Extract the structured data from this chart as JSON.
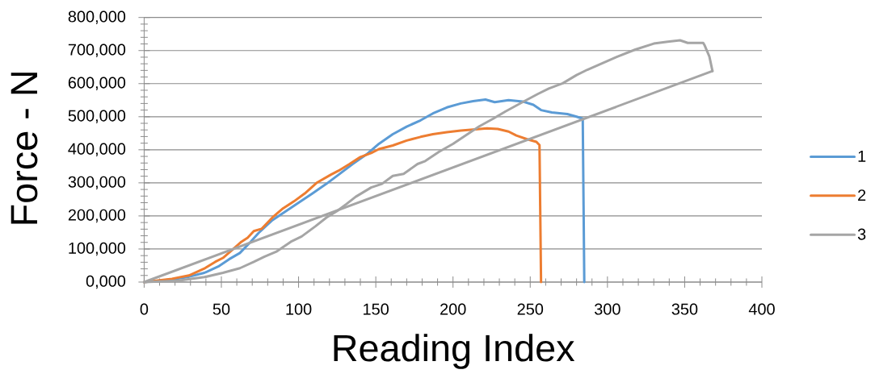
{
  "chart_data": {
    "type": "line",
    "xlabel": "Reading Index",
    "ylabel": "Force - N",
    "xlim": [
      0,
      400
    ],
    "ylim": [
      0,
      800000
    ],
    "xticks": [
      0,
      {
        "value": 10,
        "label": null
      },
      {
        "value": 20,
        "label": null
      },
      {
        "value": 30,
        "label": null
      },
      {
        "value": 40,
        "label": null
      },
      50,
      {
        "value": 60,
        "label": null
      },
      {
        "value": 70,
        "label": null
      },
      {
        "value": 80,
        "label": null
      },
      {
        "value": 90,
        "label": null
      },
      100,
      {
        "value": 110,
        "label": null
      },
      {
        "value": 120,
        "label": null
      },
      {
        "value": 130,
        "label": null
      },
      {
        "value": 140,
        "label": null
      },
      150,
      {
        "value": 160,
        "label": null
      },
      {
        "value": 170,
        "label": null
      },
      {
        "value": 180,
        "label": null
      },
      {
        "value": 190,
        "label": null
      },
      200,
      {
        "value": 210,
        "label": null
      },
      {
        "value": 220,
        "label": null
      },
      {
        "value": 230,
        "label": null
      },
      {
        "value": 240,
        "label": null
      },
      250,
      {
        "value": 260,
        "label": null
      },
      {
        "value": 270,
        "label": null
      },
      {
        "value": 280,
        "label": null
      },
      {
        "value": 290,
        "label": null
      },
      300,
      {
        "value": 310,
        "label": null
      },
      {
        "value": 320,
        "label": null
      },
      {
        "value": 330,
        "label": null
      },
      {
        "value": 340,
        "label": null
      },
      350,
      {
        "value": 360,
        "label": null
      },
      {
        "value": 370,
        "label": null
      },
      {
        "value": 380,
        "label": null
      },
      {
        "value": 390,
        "label": null
      },
      400
    ],
    "yticks": [
      {
        "value": 0,
        "label": "0,000"
      },
      {
        "value": 20000,
        "label": null
      },
      {
        "value": 40000,
        "label": null
      },
      {
        "value": 60000,
        "label": null
      },
      {
        "value": 80000,
        "label": null
      },
      {
        "value": 100000,
        "label": "100,000"
      },
      {
        "value": 120000,
        "label": null
      },
      {
        "value": 140000,
        "label": null
      },
      {
        "value": 160000,
        "label": null
      },
      {
        "value": 180000,
        "label": null
      },
      {
        "value": 200000,
        "label": "200,000"
      },
      {
        "value": 220000,
        "label": null
      },
      {
        "value": 240000,
        "label": null
      },
      {
        "value": 260000,
        "label": null
      },
      {
        "value": 280000,
        "label": null
      },
      {
        "value": 300000,
        "label": "300,000"
      },
      {
        "value": 320000,
        "label": null
      },
      {
        "value": 340000,
        "label": null
      },
      {
        "value": 360000,
        "label": null
      },
      {
        "value": 380000,
        "label": null
      },
      {
        "value": 400000,
        "label": "400,000"
      },
      {
        "value": 420000,
        "label": null
      },
      {
        "value": 440000,
        "label": null
      },
      {
        "value": 460000,
        "label": null
      },
      {
        "value": 480000,
        "label": null
      },
      {
        "value": 500000,
        "label": "500,000"
      },
      {
        "value": 520000,
        "label": null
      },
      {
        "value": 540000,
        "label": null
      },
      {
        "value": 560000,
        "label": null
      },
      {
        "value": 580000,
        "label": null
      },
      {
        "value": 600000,
        "label": "600,000"
      },
      {
        "value": 620000,
        "label": null
      },
      {
        "value": 640000,
        "label": null
      },
      {
        "value": 660000,
        "label": null
      },
      {
        "value": 680000,
        "label": null
      },
      {
        "value": 700000,
        "label": "700,000"
      },
      {
        "value": 720000,
        "label": null
      },
      {
        "value": 740000,
        "label": null
      },
      {
        "value": 760000,
        "label": null
      },
      {
        "value": 780000,
        "label": null
      },
      {
        "value": 800000,
        "label": "800,000"
      }
    ],
    "grid": "y",
    "legend": "right",
    "marker": "none",
    "line_style": "solid",
    "series": [
      {
        "name": "1",
        "color": "#5b9bd5",
        "x": [
          0,
          18,
          29,
          39,
          48,
          55,
          62,
          69,
          74,
          83,
          92,
          100,
          109,
          118,
          126,
          135,
          144,
          152,
          161,
          170,
          179,
          187,
          196,
          205,
          213,
          221,
          227,
          236,
          245,
          252,
          257,
          264,
          274,
          280,
          284,
          285
        ],
        "values": [
          0,
          8000,
          16000,
          28000,
          47000,
          69000,
          88000,
          122000,
          148000,
          187000,
          215000,
          240000,
          268000,
          297000,
          325000,
          357000,
          386000,
          418000,
          447000,
          470000,
          489000,
          510000,
          528000,
          540000,
          547000,
          552000,
          544000,
          550000,
          546000,
          536000,
          520000,
          513000,
          508000,
          500000,
          494000,
          0
        ]
      },
      {
        "name": "2",
        "color": "#ed7d31",
        "x": [
          0,
          18,
          29,
          39,
          46,
          51,
          57,
          63,
          67,
          71,
          76,
          83,
          90,
          97,
          104,
          112,
          121,
          126,
          133,
          140,
          147,
          152,
          161,
          170,
          179,
          187,
          196,
          205,
          213,
          222,
          229,
          236,
          241,
          248,
          254,
          256,
          257
        ],
        "values": [
          0,
          10000,
          20000,
          41000,
          61000,
          73000,
          97000,
          122000,
          134000,
          154000,
          161000,
          195000,
          223000,
          244000,
          268000,
          301000,
          325000,
          337000,
          357000,
          378000,
          390000,
          402000,
          413000,
          428000,
          439000,
          447000,
          453000,
          458000,
          461000,
          465000,
          463000,
          455000,
          443000,
          432000,
          424000,
          414000,
          0
        ]
      },
      {
        "name": "3",
        "color": "#a5a5a5",
        "x": [
          0,
          22,
          39,
          51,
          62,
          71,
          78,
          86,
          95,
          102,
          111,
          118,
          125,
          131,
          137,
          147,
          154,
          161,
          168,
          177,
          182,
          191,
          200,
          208,
          217,
          226,
          234,
          245,
          255,
          262,
          271,
          280,
          287,
          295,
          306,
          318,
          330,
          339,
          347,
          352,
          362,
          363,
          366,
          368
        ],
        "values": [
          0,
          4000,
          15000,
          28000,
          42000,
          61000,
          77000,
          93000,
          122000,
          138000,
          169000,
          195000,
          215000,
          236000,
          258000,
          286000,
          297000,
          321000,
          327000,
          357000,
          366000,
          394000,
          418000,
          443000,
          471000,
          494000,
          516000,
          544000,
          569000,
          585000,
          601000,
          626000,
          642000,
          658000,
          681000,
          703000,
          721000,
          727000,
          731000,
          723000,
          723000,
          715000,
          682000,
          638000
        ]
      },
      {
        "color": "#a5a5a5",
        "x": [
          0,
          368
        ],
        "values": [
          0,
          638000
        ]
      }
    ]
  }
}
